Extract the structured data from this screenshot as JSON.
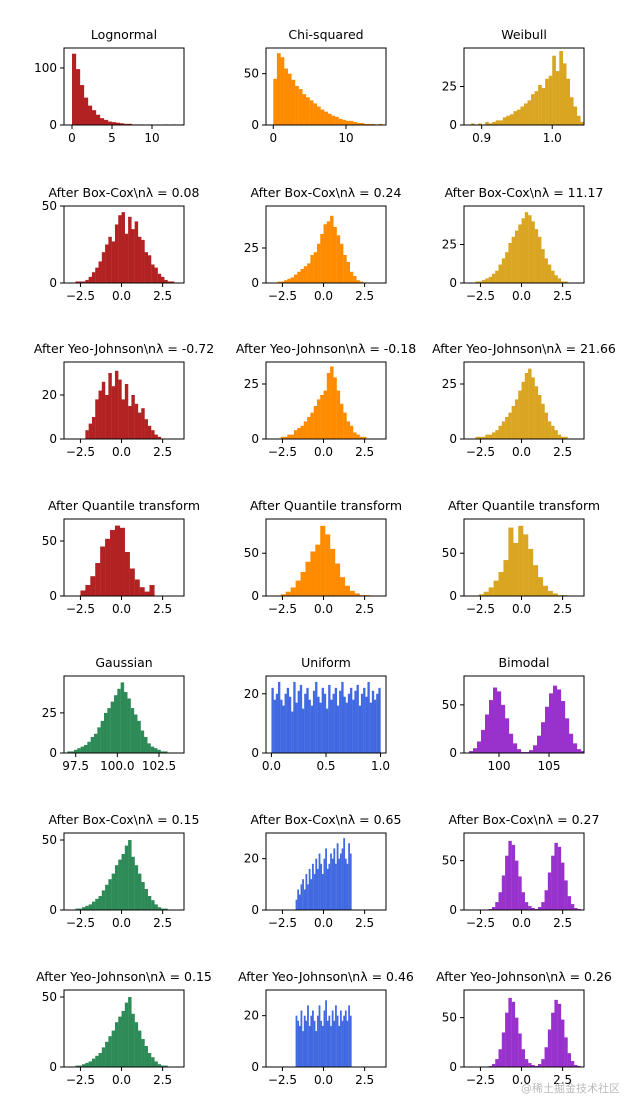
{
  "colors": {
    "lognormal": "#b22222",
    "chisq": "#ff8c00",
    "weibull": "#daa520",
    "gaussian": "#2e8b57",
    "uniform": "#4169e1",
    "bimodal": "#9932cc"
  },
  "watermark": "@稀土掘金技术社区",
  "chart_data": [
    {
      "type": "bar",
      "title": "Lognormal",
      "color": "lognormal",
      "xlim": [
        -1,
        14
      ],
      "ylim": [
        0,
        135
      ],
      "xticks": [
        0,
        5,
        10
      ],
      "xticklabels": [
        "0",
        "5",
        "10"
      ],
      "yticks": [
        0,
        100
      ],
      "yticklabels": [
        "0",
        "100"
      ],
      "bin_start": 0,
      "bin_width": 0.5,
      "values": [
        125,
        98,
        70,
        48,
        34,
        26,
        18,
        12,
        9,
        6,
        5,
        4,
        3,
        2,
        2,
        1,
        1,
        1,
        0,
        1,
        0,
        0,
        0,
        1,
        0,
        1,
        0,
        1
      ]
    },
    {
      "type": "bar",
      "title": "Chi-squared",
      "color": "chisq",
      "xlim": [
        -1,
        15.5
      ],
      "ylim": [
        0,
        75
      ],
      "xticks": [
        0,
        10
      ],
      "xticklabels": [
        "0",
        "10"
      ],
      "yticks": [
        0,
        50
      ],
      "yticklabels": [
        "0",
        "50"
      ],
      "bin_start": 0,
      "bin_width": 0.5,
      "values": [
        45,
        70,
        66,
        55,
        50,
        44,
        38,
        35,
        30,
        27,
        24,
        21,
        18,
        15,
        13,
        11,
        9,
        8,
        6,
        5,
        4,
        4,
        3,
        2,
        2,
        1,
        1,
        1,
        0,
        1
      ]
    },
    {
      "type": "bar",
      "title": "Weibull",
      "color": "weibull",
      "xlim": [
        0.875,
        1.045
      ],
      "ylim": [
        0,
        50
      ],
      "xticks": [
        0.9,
        1.0
      ],
      "xticklabels": [
        "0.9",
        "1.0"
      ],
      "yticks": [
        0,
        25
      ],
      "yticklabels": [
        "0",
        "25"
      ],
      "bin_start": 0.885,
      "bin_width": 0.005,
      "values": [
        1,
        0,
        1,
        0,
        2,
        1,
        2,
        3,
        3,
        5,
        6,
        7,
        9,
        10,
        12,
        14,
        16,
        20,
        22,
        26,
        24,
        30,
        32,
        45,
        35,
        48,
        40,
        30,
        18,
        12,
        6,
        2
      ]
    },
    {
      "type": "bar",
      "title": "After Box-Cox\\nλ = 0.08",
      "color": "lognormal",
      "xlim": [
        -3.5,
        3.8
      ],
      "ylim": [
        0,
        50
      ],
      "xticks": [
        -2.5,
        0,
        2.5
      ],
      "xticklabels": [
        "−2.5",
        "0.0",
        "2.5"
      ],
      "yticks": [
        0,
        50
      ],
      "yticklabels": [
        "0",
        "50"
      ],
      "bin_start": -2.8,
      "bin_width": 0.2,
      "values": [
        1,
        1,
        1,
        2,
        4,
        7,
        10,
        14,
        20,
        25,
        30,
        27,
        38,
        44,
        46,
        32,
        43,
        35,
        40,
        30,
        28,
        20,
        18,
        12,
        10,
        6,
        4,
        2,
        1,
        1
      ]
    },
    {
      "type": "bar",
      "title": "After Box-Cox\\nλ = 0.24",
      "color": "chisq",
      "xlim": [
        -3.5,
        3.8
      ],
      "ylim": [
        0,
        55
      ],
      "xticks": [
        -2.5,
        0,
        2.5
      ],
      "xticklabels": [
        "−2.5",
        "0.0",
        "2.5"
      ],
      "yticks": [
        0,
        25
      ],
      "yticklabels": [
        "0",
        "25"
      ],
      "bin_start": -2.8,
      "bin_width": 0.2,
      "values": [
        1,
        1,
        2,
        3,
        4,
        6,
        8,
        10,
        12,
        14,
        20,
        22,
        28,
        35,
        42,
        44,
        48,
        40,
        34,
        28,
        20,
        15,
        8,
        5,
        2,
        1
      ]
    },
    {
      "type": "bar",
      "title": "After Box-Cox\\nλ = 11.17",
      "color": "weibull",
      "xlim": [
        -3.5,
        3.8
      ],
      "ylim": [
        0,
        50
      ],
      "xticks": [
        -2.5,
        0,
        2.5
      ],
      "xticklabels": [
        "−2.5",
        "0.0",
        "2.5"
      ],
      "yticks": [
        0,
        25
      ],
      "yticklabels": [
        "0",
        "25"
      ],
      "bin_start": -2.8,
      "bin_width": 0.2,
      "values": [
        1,
        1,
        2,
        3,
        4,
        6,
        8,
        12,
        16,
        20,
        26,
        30,
        34,
        38,
        42,
        46,
        44,
        40,
        35,
        30,
        22,
        16,
        12,
        8,
        5,
        3,
        1,
        1
      ]
    },
    {
      "type": "bar",
      "title": "After Yeo-Johnson\\nλ = -0.72",
      "color": "lognormal",
      "xlim": [
        -3.5,
        3.8
      ],
      "ylim": [
        0,
        35
      ],
      "xticks": [
        -2.5,
        0,
        2.5
      ],
      "xticklabels": [
        "−2.5",
        "0.0",
        "2.5"
      ],
      "yticks": [
        0,
        20
      ],
      "yticklabels": [
        "0",
        "20"
      ],
      "bin_start": -2.2,
      "bin_width": 0.2,
      "values": [
        4,
        7,
        10,
        18,
        22,
        26,
        20,
        30,
        24,
        31,
        27,
        18,
        25,
        15,
        20,
        16,
        12,
        14,
        9,
        6,
        4,
        2,
        1
      ]
    },
    {
      "type": "bar",
      "title": "After Yeo-Johnson\\nλ = -0.18",
      "color": "chisq",
      "xlim": [
        -3.5,
        3.8
      ],
      "ylim": [
        0,
        35
      ],
      "xticks": [
        -2.5,
        0,
        2.5
      ],
      "xticklabels": [
        "−2.5",
        "0.0",
        "2.5"
      ],
      "yticks": [
        0,
        25
      ],
      "yticklabels": [
        "0",
        "25"
      ],
      "bin_start": -2.6,
      "bin_width": 0.2,
      "values": [
        1,
        1,
        2,
        2,
        4,
        5,
        6,
        8,
        10,
        12,
        15,
        18,
        20,
        22,
        30,
        33,
        28,
        22,
        16,
        12,
        8,
        6,
        3,
        2,
        1,
        1
      ]
    },
    {
      "type": "bar",
      "title": "After Yeo-Johnson\\nλ = 21.66",
      "color": "weibull",
      "xlim": [
        -3.5,
        3.8
      ],
      "ylim": [
        0,
        35
      ],
      "xticks": [
        -2.5,
        0,
        2.5
      ],
      "xticklabels": [
        "−2.5",
        "0.0",
        "2.5"
      ],
      "yticks": [
        0,
        25
      ],
      "yticklabels": [
        "0",
        "25"
      ],
      "bin_start": -2.8,
      "bin_width": 0.2,
      "values": [
        1,
        1,
        1,
        2,
        2,
        3,
        4,
        6,
        8,
        10,
        12,
        15,
        18,
        22,
        26,
        30,
        32,
        28,
        24,
        20,
        16,
        12,
        8,
        6,
        4,
        2,
        1,
        1
      ]
    },
    {
      "type": "bar",
      "title": "After Quantile transform",
      "color": "lognormal",
      "xlim": [
        -3.5,
        3.8
      ],
      "ylim": [
        0,
        70
      ],
      "xticks": [
        -2.5,
        0,
        2.5
      ],
      "xticklabels": [
        "−2.5",
        "0.0",
        "2.5"
      ],
      "yticks": [
        0,
        50
      ],
      "yticklabels": [
        "0",
        "50"
      ],
      "bin_start": -2.5,
      "bin_width": 0.3,
      "values": [
        5,
        10,
        18,
        30,
        45,
        52,
        60,
        64,
        62,
        40,
        25,
        15,
        8,
        4,
        10,
        0,
        0,
        0
      ]
    },
    {
      "type": "bar",
      "title": "After Quantile transform",
      "color": "chisq",
      "xlim": [
        -3.5,
        3.8
      ],
      "ylim": [
        0,
        90
      ],
      "xticks": [
        -2.5,
        0,
        2.5
      ],
      "xticklabels": [
        "−2.5",
        "0.0",
        "2.5"
      ],
      "yticks": [
        0,
        50
      ],
      "yticklabels": [
        "0",
        "50"
      ],
      "bin_start": -2.6,
      "bin_width": 0.3,
      "values": [
        2,
        5,
        10,
        18,
        28,
        40,
        52,
        60,
        82,
        72,
        55,
        38,
        22,
        12,
        6,
        3,
        1,
        1
      ]
    },
    {
      "type": "bar",
      "title": "After Quantile transform",
      "color": "weibull",
      "xlim": [
        -3.5,
        3.8
      ],
      "ylim": [
        0,
        90
      ],
      "xticks": [
        -2.5,
        0,
        2.5
      ],
      "xticklabels": [
        "−2.5",
        "0.0",
        "2.5"
      ],
      "yticks": [
        0,
        50
      ],
      "yticklabels": [
        "0",
        "50"
      ],
      "bin_start": -2.6,
      "bin_width": 0.3,
      "values": [
        2,
        5,
        10,
        18,
        28,
        42,
        80,
        62,
        82,
        72,
        55,
        36,
        22,
        12,
        6,
        3,
        1,
        1
      ]
    },
    {
      "type": "bar",
      "title": "Gaussian",
      "color": "gaussian",
      "xlim": [
        96.8,
        104.0
      ],
      "ylim": [
        0,
        48
      ],
      "xticks": [
        97.5,
        100.0,
        102.5
      ],
      "xticklabels": [
        "97.5",
        "100.0",
        "102.5"
      ],
      "yticks": [
        0,
        25
      ],
      "yticklabels": [
        "0",
        "25"
      ],
      "bin_start": 97.0,
      "bin_width": 0.2,
      "values": [
        1,
        1,
        2,
        3,
        4,
        5,
        7,
        10,
        12,
        16,
        20,
        25,
        28,
        32,
        36,
        40,
        44,
        38,
        34,
        28,
        24,
        20,
        14,
        10,
        6,
        4,
        3,
        2,
        1,
        1
      ]
    },
    {
      "type": "bar",
      "title": "Uniform",
      "color": "uniform",
      "xlim": [
        -0.05,
        1.05
      ],
      "ylim": [
        0,
        26
      ],
      "xticks": [
        0.0,
        0.5,
        1.0
      ],
      "xticklabels": [
        "0.0",
        "0.5",
        "1.0"
      ],
      "yticks": [
        0,
        20
      ],
      "yticklabels": [
        "0",
        "20"
      ],
      "bin_start": 0.0,
      "bin_width": 0.02,
      "values": [
        22,
        18,
        20,
        24,
        18,
        16,
        20,
        22,
        19,
        14,
        24,
        17,
        21,
        23,
        15,
        20,
        22,
        18,
        16,
        21,
        24,
        19,
        17,
        22,
        20,
        15,
        23,
        18,
        20,
        22,
        16,
        21,
        24,
        19,
        17,
        20,
        22,
        18,
        21,
        23,
        16,
        20,
        22,
        19,
        24,
        17,
        21,
        18,
        20,
        22
      ]
    },
    {
      "type": "bar",
      "title": "Bimodal",
      "color": "bimodal",
      "xlim": [
        96.5,
        108.5
      ],
      "ylim": [
        0,
        80
      ],
      "xticks": [
        100,
        105
      ],
      "xticklabels": [
        "100",
        "105"
      ],
      "yticks": [
        0,
        50
      ],
      "yticklabels": [
        "0",
        "50"
      ],
      "bin_start": 97.0,
      "bin_width": 0.4,
      "values": [
        2,
        5,
        12,
        24,
        40,
        55,
        68,
        64,
        50,
        36,
        20,
        10,
        4,
        1,
        1,
        3,
        8,
        18,
        32,
        48,
        62,
        70,
        66,
        54,
        36,
        20,
        10,
        4,
        2,
        1
      ]
    },
    {
      "type": "bar",
      "title": "After Box-Cox\\nλ = 0.15",
      "color": "gaussian",
      "xlim": [
        -3.5,
        3.8
      ],
      "ylim": [
        0,
        55
      ],
      "xticks": [
        -2.5,
        0,
        2.5
      ],
      "xticklabels": [
        "−2.5",
        "0.0",
        "2.5"
      ],
      "yticks": [
        0,
        50
      ],
      "yticklabels": [
        "0",
        "50"
      ],
      "bin_start": -2.8,
      "bin_width": 0.2,
      "values": [
        1,
        1,
        2,
        3,
        4,
        6,
        8,
        10,
        14,
        18,
        22,
        26,
        32,
        36,
        40,
        46,
        50,
        38,
        32,
        26,
        20,
        15,
        10,
        7,
        4,
        2,
        1,
        1
      ]
    },
    {
      "type": "bar",
      "title": "After Box-Cox\\nλ = 0.65",
      "color": "uniform",
      "xlim": [
        -3.5,
        3.8
      ],
      "ylim": [
        0,
        30
      ],
      "xticks": [
        -2.5,
        0,
        2.5
      ],
      "xticklabels": [
        "−2.5",
        "0.0",
        "2.5"
      ],
      "yticks": [
        0,
        20
      ],
      "yticklabels": [
        "0",
        "20"
      ],
      "bin_start": -1.7,
      "bin_width": 0.1,
      "values": [
        4,
        8,
        6,
        10,
        12,
        8,
        14,
        10,
        16,
        12,
        18,
        14,
        20,
        16,
        22,
        18,
        14,
        20,
        24,
        16,
        18,
        22,
        20,
        24,
        18,
        26,
        20,
        22,
        24,
        28,
        20,
        18,
        26,
        22
      ]
    },
    {
      "type": "bar",
      "title": "After Box-Cox\\nλ = 0.27",
      "color": "bimodal",
      "xlim": [
        -3.5,
        3.8
      ],
      "ylim": [
        0,
        78
      ],
      "xticks": [
        -2.5,
        0,
        2.5
      ],
      "xticklabels": [
        "−2.5",
        "0.0",
        "2.5"
      ],
      "yticks": [
        0,
        50
      ],
      "yticklabels": [
        "0",
        "50"
      ],
      "bin_start": -2.0,
      "bin_width": 0.2,
      "values": [
        1,
        3,
        8,
        18,
        35,
        55,
        70,
        66,
        50,
        34,
        18,
        8,
        4,
        2,
        1,
        3,
        8,
        20,
        38,
        55,
        68,
        64,
        48,
        30,
        14,
        6,
        2,
        1
      ]
    },
    {
      "type": "bar",
      "title": "After Yeo-Johnson\\nλ = 0.15",
      "color": "gaussian",
      "xlim": [
        -3.5,
        3.8
      ],
      "ylim": [
        0,
        55
      ],
      "xticks": [
        -2.5,
        0,
        2.5
      ],
      "xticklabels": [
        "−2.5",
        "0.0",
        "2.5"
      ],
      "yticks": [
        0,
        50
      ],
      "yticklabels": [
        "0",
        "50"
      ],
      "bin_start": -2.8,
      "bin_width": 0.2,
      "values": [
        1,
        1,
        2,
        3,
        4,
        6,
        8,
        10,
        14,
        18,
        22,
        26,
        32,
        36,
        40,
        46,
        50,
        38,
        32,
        26,
        20,
        15,
        10,
        7,
        4,
        2,
        1,
        1
      ]
    },
    {
      "type": "bar",
      "title": "After Yeo-Johnson\\nλ = 0.46",
      "color": "uniform",
      "xlim": [
        -3.5,
        3.8
      ],
      "ylim": [
        0,
        30
      ],
      "xticks": [
        -2.5,
        0,
        2.5
      ],
      "xticklabels": [
        "−2.5",
        "0.0",
        "2.5"
      ],
      "yticks": [
        0,
        20
      ],
      "yticklabels": [
        "0",
        "20"
      ],
      "bin_start": -1.7,
      "bin_width": 0.1,
      "values": [
        20,
        18,
        16,
        22,
        14,
        20,
        18,
        24,
        16,
        20,
        22,
        18,
        14,
        20,
        24,
        18,
        16,
        22,
        26,
        18,
        20,
        16,
        22,
        18,
        24,
        20,
        16,
        22,
        18,
        20,
        22,
        18,
        24,
        20
      ]
    },
    {
      "type": "bar",
      "title": "After Yeo-Johnson\\nλ = 0.26",
      "color": "bimodal",
      "xlim": [
        -3.5,
        3.8
      ],
      "ylim": [
        0,
        78
      ],
      "xticks": [
        -2.5,
        0,
        2.5
      ],
      "xticklabels": [
        "−2.5",
        "0.0",
        "2.5"
      ],
      "yticks": [
        0,
        50
      ],
      "yticklabels": [
        "0",
        "50"
      ],
      "bin_start": -2.0,
      "bin_width": 0.2,
      "values": [
        1,
        3,
        8,
        18,
        35,
        55,
        70,
        66,
        50,
        34,
        18,
        8,
        4,
        2,
        1,
        3,
        8,
        20,
        38,
        55,
        68,
        64,
        48,
        30,
        14,
        6,
        2,
        1
      ]
    }
  ]
}
